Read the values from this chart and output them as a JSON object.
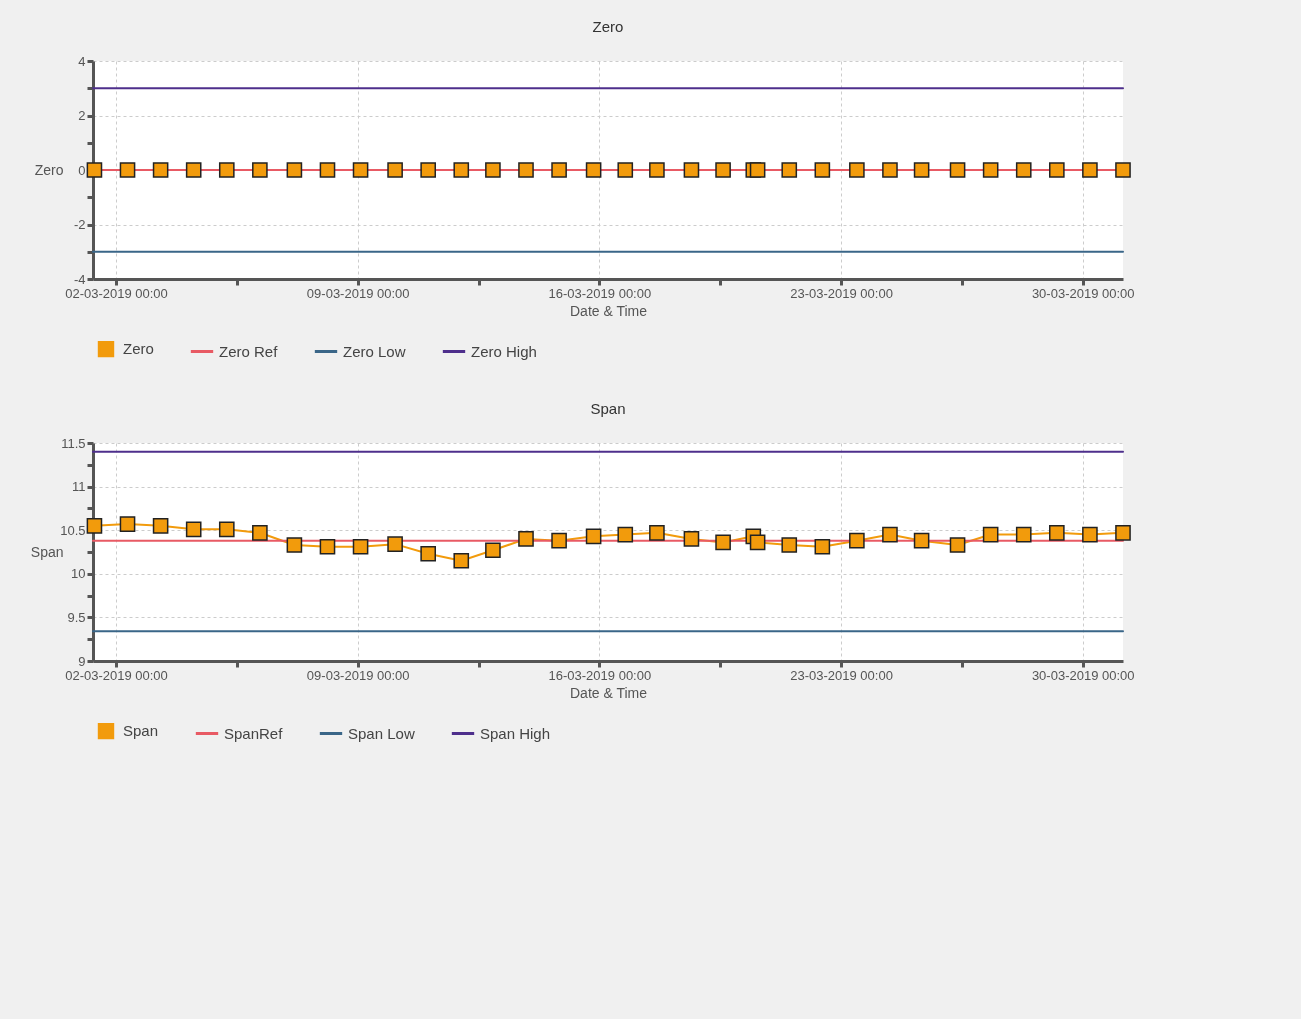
{
  "chart_data": [
    {
      "type": "line",
      "title": "Zero",
      "xlabel": "Date & Time",
      "ylabel": "Zero",
      "grid": true,
      "legend": "bottom",
      "line_style": "solid",
      "x": [
        "2019-03-01T09:00",
        "2019-03-02T08:00",
        "2019-03-03T07:00",
        "2019-03-04T06:00",
        "2019-03-05T05:00",
        "2019-03-06T04:00",
        "2019-03-07T04:00",
        "2019-03-08T03:00",
        "2019-03-09T02:00",
        "2019-03-10T02:00",
        "2019-03-11T01:00",
        "2019-03-12T00:00",
        "2019-03-12T22:00",
        "2019-03-13T21:00",
        "2019-03-14T20:00",
        "2019-03-15T20:00",
        "2019-03-16T18:00",
        "2019-03-17T16:00",
        "2019-03-18T16:00",
        "2019-03-19T14:00",
        "2019-03-20T11:00",
        "2019-03-20T14:00",
        "2019-03-21T12:00",
        "2019-03-22T11:00",
        "2019-03-23T11:00",
        "2019-03-24T10:00",
        "2019-03-25T08:00",
        "2019-03-26T09:00",
        "2019-03-27T08:00",
        "2019-03-28T07:00",
        "2019-03-29T06:00",
        "2019-03-30T05:00",
        "2019-03-31T04:00"
      ],
      "xlim": [
        "2019-03-01T08:00",
        "2019-03-31T04:00"
      ],
      "xticks": [
        {
          "value": "2019-03-02T00:00",
          "label": "02-03-2019 00:00"
        },
        {
          "value": "2019-03-05T12:00",
          "label": null
        },
        {
          "value": "2019-03-09T00:00",
          "label": "09-03-2019 00:00"
        },
        {
          "value": "2019-03-12T12:00",
          "label": null
        },
        {
          "value": "2019-03-16T00:00",
          "label": "16-03-2019 00:00"
        },
        {
          "value": "2019-03-19T12:00",
          "label": null
        },
        {
          "value": "2019-03-23T00:00",
          "label": "23-03-2019 00:00"
        },
        {
          "value": "2019-03-26T12:00",
          "label": null
        },
        {
          "value": "2019-03-30T00:00",
          "label": "30-03-2019 00:00"
        }
      ],
      "ylim": [
        -4,
        4
      ],
      "yticks": [
        -4,
        {
          "value": -3,
          "label": null
        },
        -2,
        {
          "value": -1,
          "label": null
        },
        0,
        {
          "value": 1,
          "label": null
        },
        2,
        {
          "value": 3,
          "label": null
        },
        4
      ],
      "series": [
        {
          "name": "Zero",
          "color": "#f29b0c",
          "marker": "square",
          "values": [
            0,
            0,
            0,
            0,
            0,
            0,
            0,
            0,
            0,
            0,
            0,
            0,
            0,
            0,
            0,
            0,
            0,
            0,
            0,
            0,
            0,
            0,
            0,
            0,
            0,
            0,
            0,
            0,
            0,
            0,
            0,
            0,
            0
          ]
        },
        {
          "name": "Zero Ref",
          "color": "#e85a64",
          "marker": "none",
          "x": [
            "2019-03-01T08:00",
            "2019-03-31T04:00"
          ],
          "values": [
            0,
            0
          ]
        },
        {
          "name": "Zero Low",
          "color": "#3a6688",
          "marker": "none",
          "x": [
            "2019-03-01T08:00",
            "2019-03-31T04:00"
          ],
          "values": [
            -3,
            -3
          ]
        },
        {
          "name": "Zero High",
          "color": "#4e2f8c",
          "marker": "none",
          "x": [
            "2019-03-01T08:00",
            "2019-03-31T04:00"
          ],
          "values": [
            3,
            3
          ]
        }
      ]
    },
    {
      "type": "line",
      "title": "Span",
      "xlabel": "Date & Time",
      "ylabel": "Span",
      "grid": true,
      "legend": "bottom",
      "line_style": "solid",
      "x": [
        "2019-03-01T09:00",
        "2019-03-02T08:00",
        "2019-03-03T07:00",
        "2019-03-04T06:00",
        "2019-03-05T05:00",
        "2019-03-06T04:00",
        "2019-03-07T04:00",
        "2019-03-08T03:00",
        "2019-03-09T02:00",
        "2019-03-10T02:00",
        "2019-03-11T01:00",
        "2019-03-12T00:00",
        "2019-03-12T22:00",
        "2019-03-13T21:00",
        "2019-03-14T20:00",
        "2019-03-15T20:00",
        "2019-03-16T18:00",
        "2019-03-17T16:00",
        "2019-03-18T16:00",
        "2019-03-19T14:00",
        "2019-03-20T11:00",
        "2019-03-20T14:00",
        "2019-03-21T12:00",
        "2019-03-22T11:00",
        "2019-03-23T11:00",
        "2019-03-24T10:00",
        "2019-03-25T08:00",
        "2019-03-26T09:00",
        "2019-03-27T08:00",
        "2019-03-28T07:00",
        "2019-03-29T06:00",
        "2019-03-30T05:00",
        "2019-03-31T04:00"
      ],
      "xlim": [
        "2019-03-01T08:00",
        "2019-03-31T04:00"
      ],
      "xticks": [
        {
          "value": "2019-03-02T00:00",
          "label": "02-03-2019 00:00"
        },
        {
          "value": "2019-03-05T12:00",
          "label": null
        },
        {
          "value": "2019-03-09T00:00",
          "label": "09-03-2019 00:00"
        },
        {
          "value": "2019-03-12T12:00",
          "label": null
        },
        {
          "value": "2019-03-16T00:00",
          "label": "16-03-2019 00:00"
        },
        {
          "value": "2019-03-19T12:00",
          "label": null
        },
        {
          "value": "2019-03-23T00:00",
          "label": "23-03-2019 00:00"
        },
        {
          "value": "2019-03-26T12:00",
          "label": null
        },
        {
          "value": "2019-03-30T00:00",
          "label": "30-03-2019 00:00"
        }
      ],
      "ylim": [
        9,
        11.5
      ],
      "yticks": [
        9,
        {
          "value": 9.25,
          "label": null
        },
        9.5,
        {
          "value": 9.75,
          "label": null
        },
        10,
        {
          "value": 10.25,
          "label": null
        },
        10.5,
        {
          "value": 10.75,
          "label": null
        },
        11,
        {
          "value": 11.25,
          "label": null
        },
        11.5
      ],
      "series": [
        {
          "name": "Span",
          "color": "#f29b0c",
          "marker": "square",
          "values": [
            10.55,
            10.57,
            10.55,
            10.51,
            10.51,
            10.47,
            10.33,
            10.31,
            10.31,
            10.34,
            10.23,
            10.15,
            10.27,
            10.4,
            10.38,
            10.43,
            10.45,
            10.47,
            10.4,
            10.36,
            10.43,
            10.36,
            10.33,
            10.31,
            10.38,
            10.45,
            10.38,
            10.33,
            10.45,
            10.45,
            10.47,
            10.45,
            10.47
          ]
        },
        {
          "name": "SpanRef",
          "color": "#e85a64",
          "marker": "none",
          "x": [
            "2019-03-01T08:00",
            "2019-03-31T04:00"
          ],
          "values": [
            10.38,
            10.38
          ]
        },
        {
          "name": "Span Low",
          "color": "#3a6688",
          "marker": "none",
          "x": [
            "2019-03-01T08:00",
            "2019-03-31T04:00"
          ],
          "values": [
            9.34,
            9.34
          ]
        },
        {
          "name": "Span High",
          "color": "#4e2f8c",
          "marker": "none",
          "x": [
            "2019-03-01T08:00",
            "2019-03-31T04:00"
          ],
          "values": [
            11.4,
            11.4
          ]
        }
      ]
    }
  ]
}
